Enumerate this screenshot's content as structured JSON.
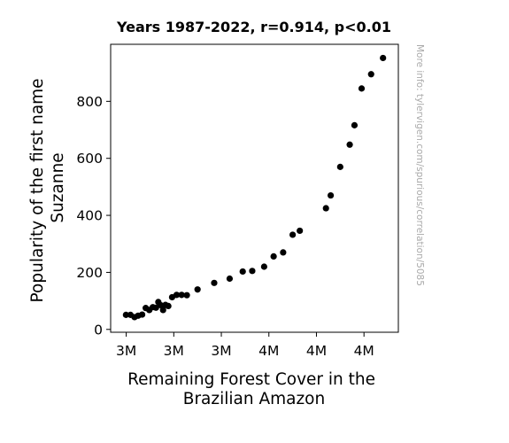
{
  "chart_data": {
    "type": "scatter",
    "title": "Years 1987-2022, r=0.914, p<0.01",
    "xlabel": [
      "Remaining Forest Cover in the",
      "Brazilian Amazon"
    ],
    "ylabel": [
      "Popularity of the first name",
      "Suzanne"
    ],
    "watermark": "More info: tylervigen.com/spurious/correlation/5085",
    "x_tick_labels": [
      "3M",
      "3M",
      "3M",
      "4M",
      "4M",
      "4M"
    ],
    "y_ticks": [
      0,
      200,
      400,
      600,
      800
    ],
    "y_tick_labels": [
      "0",
      "200",
      "400",
      "600",
      "800"
    ],
    "grid": false,
    "marker_color": "#000000",
    "points": [
      [
        3.049,
        51
      ],
      [
        3.068,
        51
      ],
      [
        3.085,
        43
      ],
      [
        3.1,
        48
      ],
      [
        3.117,
        52
      ],
      [
        3.132,
        75
      ],
      [
        3.147,
        68
      ],
      [
        3.162,
        78
      ],
      [
        3.175,
        76
      ],
      [
        3.185,
        96
      ],
      [
        3.195,
        85
      ],
      [
        3.205,
        68
      ],
      [
        3.215,
        86
      ],
      [
        3.227,
        82
      ],
      [
        3.243,
        113
      ],
      [
        3.262,
        121
      ],
      [
        3.283,
        121
      ],
      [
        3.305,
        120
      ],
      [
        3.35,
        140
      ],
      [
        3.42,
        163
      ],
      [
        3.485,
        178
      ],
      [
        3.54,
        203
      ],
      [
        3.58,
        205
      ],
      [
        3.63,
        220
      ],
      [
        3.67,
        256
      ],
      [
        3.71,
        270
      ],
      [
        3.75,
        332
      ],
      [
        3.78,
        346
      ],
      [
        3.89,
        425
      ],
      [
        3.91,
        470
      ],
      [
        3.95,
        570
      ],
      [
        3.99,
        648
      ],
      [
        4.01,
        716
      ],
      [
        4.04,
        845
      ],
      [
        4.08,
        895
      ],
      [
        4.13,
        952
      ]
    ],
    "xlim": [
      2.9845,
      4.1945
    ],
    "ylim": [
      -10,
      1000
    ]
  }
}
